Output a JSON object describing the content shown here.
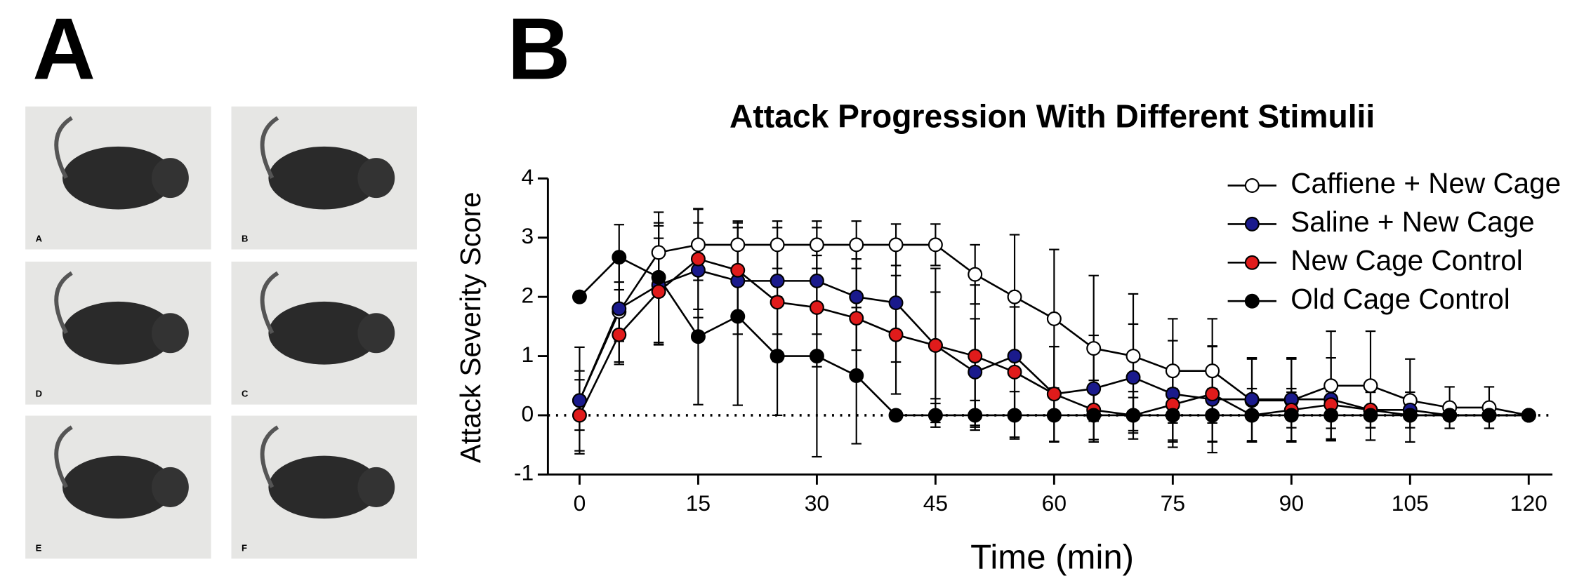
{
  "panel_labels": [
    "A",
    "B"
  ],
  "photos": [
    {
      "label": "A"
    },
    {
      "label": "B"
    },
    {
      "label": "D"
    },
    {
      "label": "C"
    },
    {
      "label": "E"
    },
    {
      "label": "F"
    }
  ],
  "chart_data": {
    "type": "line",
    "title": "Attack Progression With Different Stimulii",
    "x_label": "Time (min)",
    "y_label": "Attack Severity Score",
    "x": [
      0,
      5,
      10,
      15,
      20,
      25,
      30,
      35,
      40,
      45,
      50,
      55,
      60,
      65,
      70,
      75,
      80,
      85,
      90,
      95,
      100,
      105,
      110,
      115,
      120
    ],
    "xlim": [
      -4,
      123
    ],
    "xticks": [
      0,
      15,
      30,
      45,
      60,
      75,
      90,
      105,
      120
    ],
    "ylim": [
      -1,
      4
    ],
    "yticks": [
      -1,
      0,
      1,
      2,
      3,
      4
    ],
    "hline": 0,
    "legend": "upper right",
    "series": [
      {
        "name": "Caffiene + New Cage",
        "color": "#ffffff",
        "values": [
          0.25,
          1.75,
          2.75,
          2.88,
          2.88,
          2.88,
          2.88,
          2.88,
          2.88,
          2.88,
          2.38,
          2.0,
          1.63,
          1.13,
          1.0,
          0.75,
          0.75,
          0.25,
          0.25,
          0.5,
          0.5,
          0.25,
          0.13,
          0.13,
          0
        ],
        "errors": [
          0.5,
          0.5,
          0.5,
          0.6,
          0.4,
          0.4,
          0.4,
          0.4,
          0.35,
          0.35,
          0.5,
          1.05,
          1.17,
          1.23,
          1.05,
          0.88,
          0.88,
          0.7,
          0.7,
          0.92,
          0.92,
          0.7,
          0.35,
          0.35,
          0
        ]
      },
      {
        "name": "Saline + New Cage",
        "color": "#1a1a8c",
        "values": [
          0.25,
          1.8,
          2.2,
          2.45,
          2.27,
          2.27,
          2.27,
          2.0,
          1.9,
          1.18,
          0.73,
          1.0,
          0.36,
          0.45,
          0.64,
          0.36,
          0.27,
          0.27,
          0.27,
          0.27,
          0.09,
          0.09,
          0,
          0,
          0
        ],
        "errors": [
          0.9,
          0.9,
          1.0,
          0.8,
          0.9,
          0.9,
          0.9,
          0.9,
          1.0,
          0.9,
          0.9,
          1.0,
          0.8,
          0.9,
          0.9,
          0.9,
          0.9,
          0.7,
          0.7,
          0.7,
          0.3,
          0.3,
          0,
          0,
          0
        ]
      },
      {
        "name": "New Cage Control",
        "color": "#e01b1b",
        "values": [
          0,
          1.36,
          2.09,
          2.64,
          2.45,
          1.91,
          1.82,
          1.64,
          1.36,
          1.18,
          1.0,
          0.73,
          0.36,
          0.09,
          0,
          0.18,
          0.36,
          0,
          0.09,
          0.18,
          0.09,
          0,
          0,
          0,
          0
        ],
        "errors": [
          0.6,
          0.5,
          0.9,
          0.85,
          0.8,
          1.0,
          1.0,
          1.0,
          1.0,
          1.3,
          1.2,
          1.1,
          0.8,
          0.5,
          0.3,
          0.6,
          0.8,
          0,
          0.3,
          0.4,
          0.3,
          0,
          0,
          0,
          0
        ]
      },
      {
        "name": "Old Cage Control",
        "color": "#000000",
        "values": [
          2.0,
          2.67,
          2.33,
          1.33,
          1.67,
          1.0,
          1.0,
          0.67,
          0,
          0,
          0,
          0,
          0,
          0,
          0,
          0,
          0,
          0,
          0,
          0,
          0,
          0,
          0,
          0,
          0
        ],
        "errors": [
          0,
          0.55,
          1.1,
          1.15,
          1.5,
          1.0,
          1.7,
          1.15,
          0,
          0.2,
          0.25,
          0.4,
          0.45,
          0.45,
          0.4,
          0.45,
          0.45,
          0.45,
          0.45,
          0.4,
          0,
          0,
          0,
          0,
          0
        ]
      }
    ]
  }
}
